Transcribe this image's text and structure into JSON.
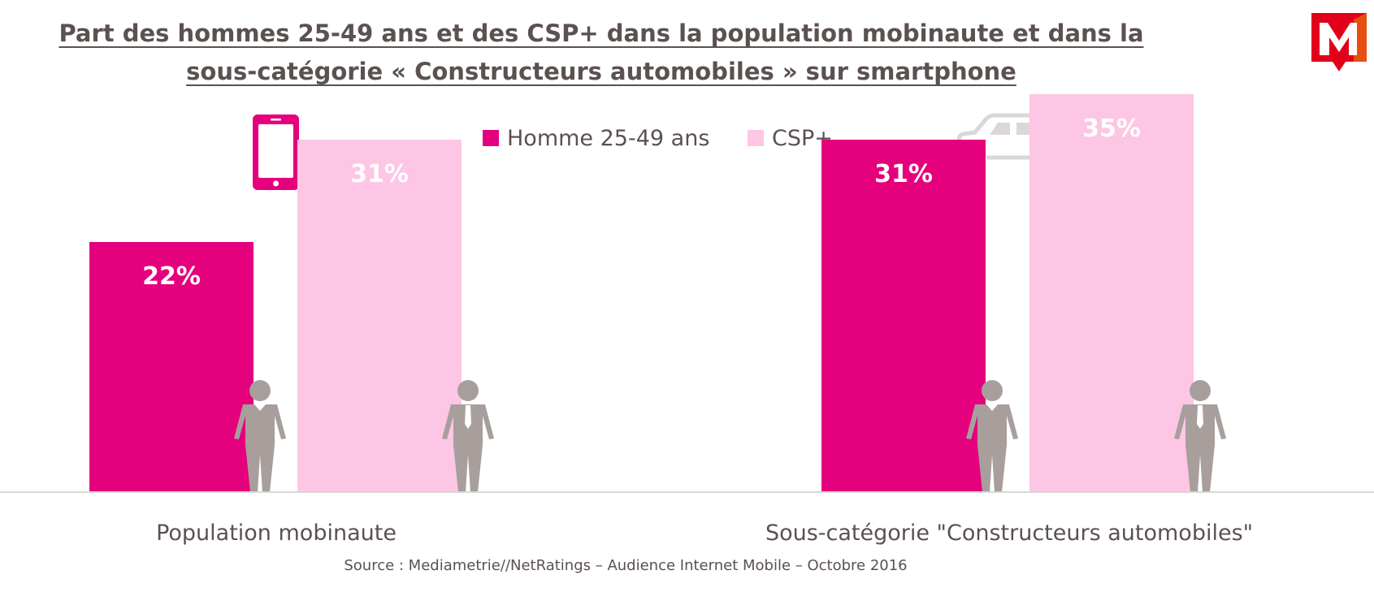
{
  "title": "Part des hommes 25-49 ans et des CSP+ dans la population mobinaute et dans la sous-catégorie « Constructeurs automobiles » sur smartphone",
  "source": "Source : Mediametrie//NetRatings – Audience Internet Mobile – Octobre 2016",
  "colors": {
    "men": "#e5007d",
    "csp": "#fdc6e4",
    "text": "#5a5150",
    "figure": "#a89e9c",
    "icon_grey": "#dbd7d6"
  },
  "icons": {
    "logo": "mediametrie-logo-icon",
    "phone": "smartphone-icon",
    "car": "car-icon",
    "person_men": "man-icon",
    "person_csp": "man-with-tie-icon"
  },
  "chart_data": {
    "type": "bar",
    "title": "Part des hommes 25-49 ans et des CSP+ dans la population mobinaute et dans la sous-catégorie « Constructeurs automobiles » sur smartphone",
    "categories": [
      "Population mobinaute",
      "Sous-catégorie \"Constructeurs automobiles\""
    ],
    "series": [
      {
        "name": "Homme 25-49 ans",
        "values": [
          22,
          31
        ],
        "labels": [
          "22%",
          "31%"
        ]
      },
      {
        "name": "CSP+",
        "values": [
          31,
          35
        ],
        "labels": [
          "31%",
          "35%"
        ]
      }
    ],
    "unit": "%",
    "ylim": [
      0,
      40
    ],
    "grid": false,
    "legend_position": "top-center"
  }
}
